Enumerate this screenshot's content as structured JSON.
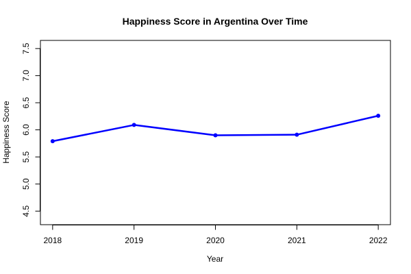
{
  "chart_data": {
    "type": "line",
    "title": "Happiness Score in Argentina Over Time",
    "xlabel": "Year",
    "ylabel": "Happiness Score",
    "x": [
      "2018",
      "2019",
      "2020",
      "2021",
      "2022"
    ],
    "series": [
      {
        "values": [
          5.79,
          6.09,
          5.9,
          5.91,
          6.26
        ],
        "color": "#0000FF"
      }
    ],
    "xlim": [
      2017.85,
      2022.15
    ],
    "ylim": [
      4.25,
      7.65
    ],
    "yticks": [
      "4.5",
      "5.0",
      "5.5",
      "6.0",
      "6.5",
      "7.0",
      "7.5"
    ],
    "grid": false,
    "markers": true
  }
}
